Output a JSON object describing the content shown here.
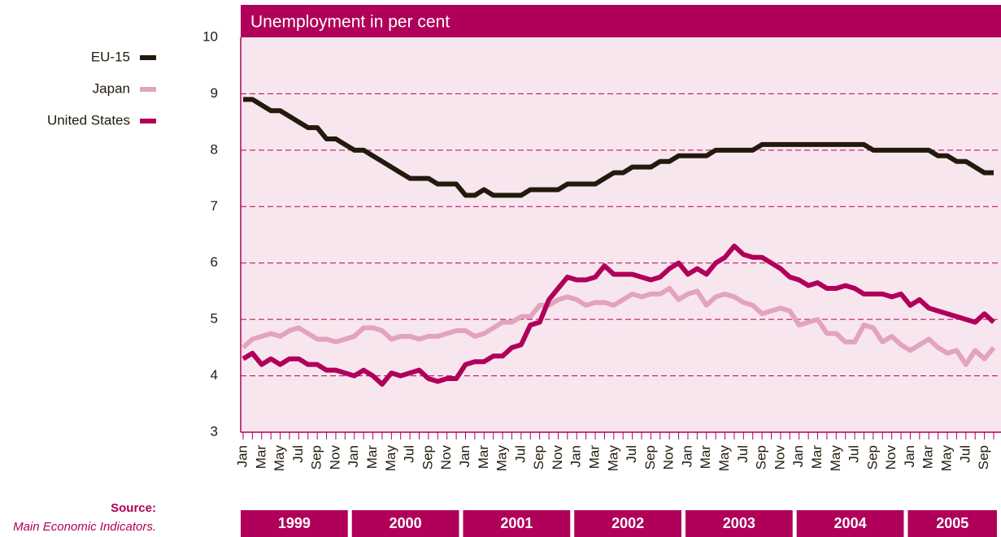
{
  "chart_data": {
    "type": "line",
    "title": "Unemployment in per cent",
    "categories": [
      "Jan",
      null,
      "Mar",
      null,
      "May",
      null,
      "Jul",
      null,
      "Sep",
      null,
      "Nov",
      null,
      "Jan",
      null,
      "Mar",
      null,
      "May",
      null,
      "Jul",
      null,
      "Sep",
      null,
      "Nov",
      null,
      "Jan",
      null,
      "Mar",
      null,
      "May",
      null,
      "Jul",
      null,
      "Sep",
      null,
      "Nov",
      null,
      "Jan",
      null,
      "Mar",
      null,
      "May",
      null,
      "Jul",
      null,
      "Sep",
      null,
      "Nov",
      null,
      "Jan",
      null,
      "Mar",
      null,
      "May",
      null,
      "Jul",
      null,
      "Sep",
      null,
      "Nov",
      null,
      "Jan",
      null,
      "Mar",
      null,
      "May",
      null,
      "Jul",
      null,
      "Sep",
      null,
      "Nov",
      null,
      "Jan",
      null,
      "Mar",
      null,
      "May",
      null,
      "Jul",
      null,
      "Sep",
      null
    ],
    "years": [
      "1999",
      "2000",
      "2001",
      "2002",
      "2003",
      "2004",
      "2005"
    ],
    "series": [
      {
        "name": "EU-15",
        "color": "#231a0e",
        "values": [
          8.9,
          8.9,
          8.8,
          8.7,
          8.7,
          8.6,
          8.5,
          8.4,
          8.4,
          8.2,
          8.2,
          8.1,
          8.0,
          8.0,
          7.9,
          7.8,
          7.7,
          7.6,
          7.5,
          7.5,
          7.5,
          7.4,
          7.4,
          7.4,
          7.2,
          7.2,
          7.3,
          7.2,
          7.2,
          7.2,
          7.2,
          7.3,
          7.3,
          7.3,
          7.3,
          7.4,
          7.4,
          7.4,
          7.4,
          7.5,
          7.6,
          7.6,
          7.7,
          7.7,
          7.7,
          7.8,
          7.8,
          7.9,
          7.9,
          7.9,
          7.9,
          8.0,
          8.0,
          8.0,
          8.0,
          8.0,
          8.1,
          8.1,
          8.1,
          8.1,
          8.1,
          8.1,
          8.1,
          8.1,
          8.1,
          8.1,
          8.1,
          8.1,
          8.0,
          8.0,
          8.0,
          8.0,
          8.0,
          8.0,
          8.0,
          7.9,
          7.9,
          7.8,
          7.8,
          7.7,
          7.6,
          7.6
        ]
      },
      {
        "name": "Japan",
        "color": "#e3a3bf",
        "values": [
          4.5,
          4.65,
          4.7,
          4.75,
          4.7,
          4.8,
          4.85,
          4.75,
          4.65,
          4.65,
          4.6,
          4.65,
          4.7,
          4.85,
          4.85,
          4.8,
          4.65,
          4.7,
          4.7,
          4.65,
          4.7,
          4.7,
          4.75,
          4.8,
          4.8,
          4.7,
          4.75,
          4.85,
          4.95,
          4.95,
          5.05,
          5.05,
          5.25,
          5.25,
          5.35,
          5.4,
          5.35,
          5.25,
          5.3,
          5.3,
          5.25,
          5.35,
          5.45,
          5.4,
          5.45,
          5.45,
          5.55,
          5.35,
          5.45,
          5.5,
          5.25,
          5.4,
          5.45,
          5.4,
          5.3,
          5.25,
          5.1,
          5.15,
          5.2,
          5.15,
          4.9,
          4.95,
          5.0,
          4.75,
          4.75,
          4.6,
          4.6,
          4.9,
          4.85,
          4.6,
          4.7,
          4.55,
          4.45,
          4.55,
          4.65,
          4.5,
          4.4,
          4.45,
          4.2,
          4.45,
          4.3,
          4.5
        ]
      },
      {
        "name": "United States",
        "color": "#b0005a",
        "values": [
          4.3,
          4.4,
          4.2,
          4.3,
          4.2,
          4.3,
          4.3,
          4.2,
          4.2,
          4.1,
          4.1,
          4.05,
          4.0,
          4.1,
          4.0,
          3.85,
          4.05,
          4.0,
          4.05,
          4.1,
          3.95,
          3.9,
          3.95,
          3.95,
          4.2,
          4.25,
          4.25,
          4.35,
          4.35,
          4.5,
          4.55,
          4.9,
          4.95,
          5.35,
          5.55,
          5.75,
          5.7,
          5.7,
          5.75,
          5.95,
          5.8,
          5.8,
          5.8,
          5.75,
          5.7,
          5.75,
          5.9,
          6.0,
          5.8,
          5.9,
          5.8,
          6.0,
          6.1,
          6.3,
          6.15,
          6.1,
          6.1,
          6.0,
          5.9,
          5.75,
          5.7,
          5.6,
          5.65,
          5.55,
          5.55,
          5.6,
          5.55,
          5.45,
          5.45,
          5.45,
          5.4,
          5.45,
          5.25,
          5.35,
          5.2,
          5.15,
          5.1,
          5.05,
          5.0,
          4.95,
          5.1,
          4.95
        ]
      }
    ],
    "ylim": [
      3,
      10
    ],
    "yticks": [
      3,
      4,
      5,
      6,
      7,
      8,
      9,
      10
    ],
    "grid": true,
    "source_label": "Source:",
    "source": "Main Economic Indicators."
  }
}
